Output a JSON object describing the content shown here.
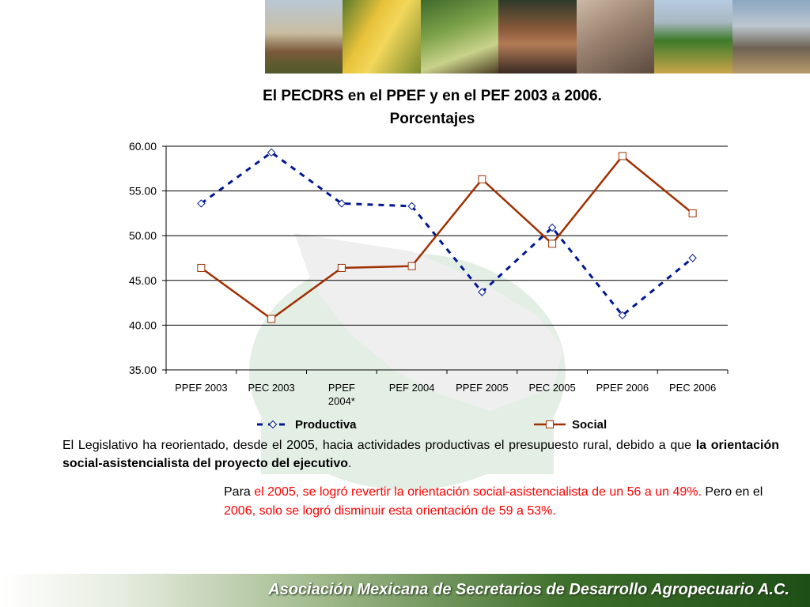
{
  "header": {
    "photos": [
      {
        "name": "cattle-photo"
      },
      {
        "name": "corn-photo"
      },
      {
        "name": "seedling-photo"
      },
      {
        "name": "farmer-woman-photo"
      },
      {
        "name": "hands-photo"
      },
      {
        "name": "tractor-photo"
      },
      {
        "name": "port-photo"
      }
    ]
  },
  "title": {
    "line1": "El PECDRS en el PPEF y en el PEF 2003 a 2006.",
    "line2": "Porcentajes"
  },
  "chart_data": {
    "type": "line",
    "categories": [
      [
        "PPEF 2003"
      ],
      [
        "PEC 2003"
      ],
      [
        "PPEF",
        "2004*"
      ],
      [
        "PEF 2004"
      ],
      [
        "PPEF 2005"
      ],
      [
        "PEC 2005"
      ],
      [
        "PPEF 2006"
      ],
      [
        "PEC 2006"
      ]
    ],
    "series": [
      {
        "name": "Productiva",
        "values": [
          53.6,
          59.3,
          53.6,
          53.3,
          43.7,
          50.9,
          41.1,
          47.5
        ],
        "color": "#00188f",
        "line": "dashed",
        "marker": "diamond"
      },
      {
        "name": "Social",
        "values": [
          46.4,
          40.7,
          46.4,
          46.6,
          56.3,
          49.1,
          58.9,
          52.5
        ],
        "color": "#a03000",
        "line": "solid",
        "marker": "square"
      }
    ],
    "y_ticks": [
      "35.00",
      "40.00",
      "45.00",
      "50.00",
      "55.00",
      "60.00"
    ],
    "ylim": [
      35,
      60
    ],
    "grid": true,
    "legend_position": "bottom"
  },
  "text": {
    "p1_a": "El Legislativo ha reorientado, desde el 2005, hacia actividades productivas el presupuesto rural, debido a que ",
    "p1_bold": "la orientación social-asistencialista del proyecto del ejecutivo",
    "p1_end": ".",
    "p2_a": "Para ",
    "p2_red1": "el 2005, se logró revertir la orientación social-asistencialista de un 56 a un 49%.",
    "p2_b": " Pero en el ",
    "p2_red2": "2006, solo se logró disminuir esta orientación de 59 a 53%."
  },
  "footer": {
    "org": "Asociación Mexicana de Secretarios de Desarrollo Agropecuario A.C."
  },
  "colors": {
    "productiva": "#00188f",
    "social": "#a03000",
    "emphasis": "#ff0000",
    "footer_dark": "#1e4f16"
  }
}
